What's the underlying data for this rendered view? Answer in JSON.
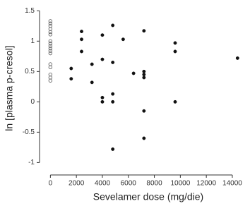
{
  "chart_data": {
    "type": "scatter",
    "xlabel": "Sevelamer dose (mg/die)",
    "ylabel": "ln [plasma p-cresol]",
    "xlim": [
      -400,
      14600
    ],
    "xticks": [
      0,
      2000,
      4000,
      6000,
      8000,
      10000,
      12000,
      14000
    ],
    "ylim": [
      -1.1,
      1.55
    ],
    "yticks": [
      1.5,
      1,
      0.5,
      0,
      -0.5,
      -1
    ],
    "series": [
      {
        "marker": "open",
        "color": "#555555",
        "x": [
          0,
          0,
          0,
          0,
          0,
          0,
          0,
          0,
          0,
          0,
          0,
          0,
          0,
          0,
          0,
          0,
          0
        ],
        "values": [
          1.33,
          1.29,
          1.25,
          1.2,
          1.15,
          1.11,
          1.0,
          0.96,
          0.92,
          0.88,
          0.84,
          0.8,
          0.62,
          0.57,
          0.45,
          0.4,
          0.35
        ]
      },
      {
        "marker": "filled",
        "color": "#111111",
        "x": [
          1600,
          1600,
          2400,
          2400,
          2400,
          3200,
          3200,
          4000,
          4000,
          4000,
          4000,
          4800,
          4800,
          4800,
          4800,
          4800,
          5600,
          6400,
          7200,
          7200,
          7200,
          7200,
          7200,
          7200,
          9600,
          9600,
          9600,
          14400
        ],
        "values": [
          0.55,
          0.38,
          1.16,
          1.03,
          0.83,
          0.62,
          0.32,
          1.1,
          0.7,
          0.07,
          0.0,
          1.26,
          0.65,
          0.13,
          0.0,
          -0.78,
          1.03,
          0.47,
          1.17,
          0.5,
          0.45,
          0.4,
          -0.15,
          -0.6,
          0.97,
          0.83,
          0.0,
          0.72
        ]
      }
    ]
  }
}
